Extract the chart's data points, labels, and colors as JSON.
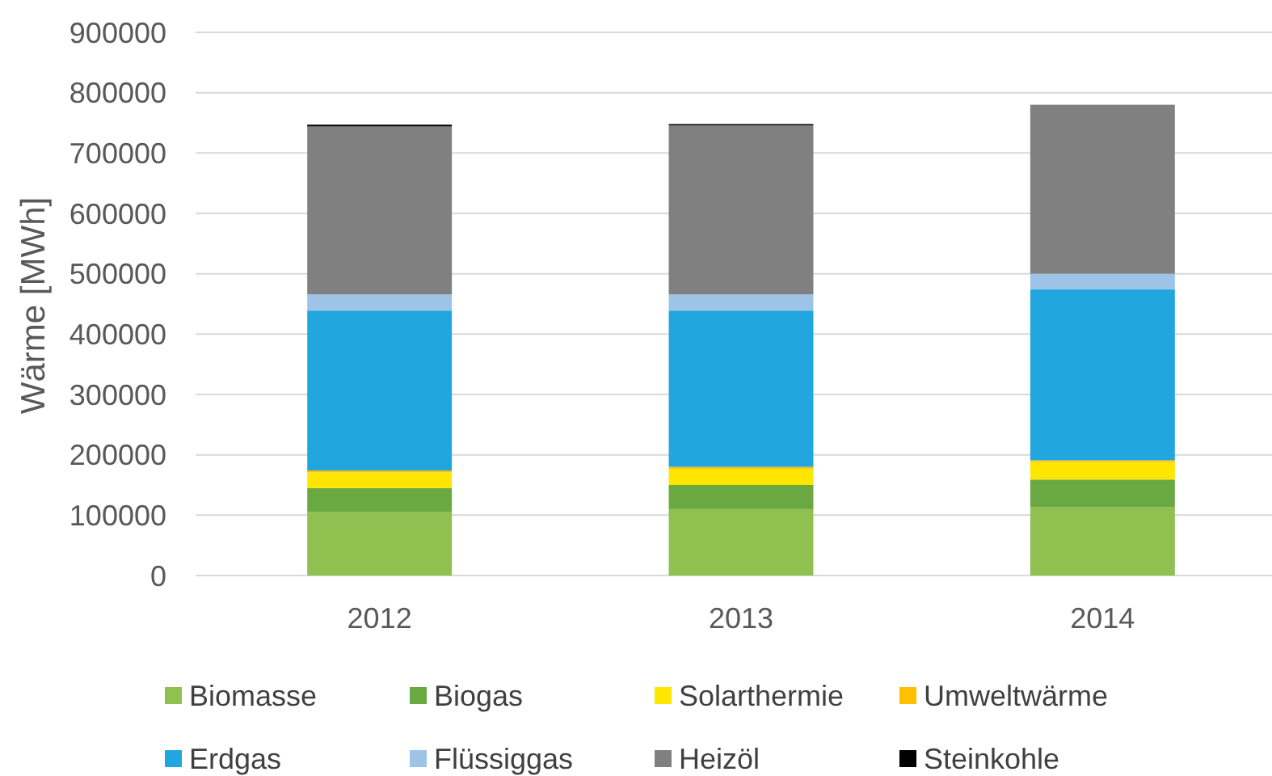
{
  "chart_data": {
    "type": "bar",
    "stacked": true,
    "ylabel": "Wärme [MWh]",
    "categories": [
      "2012",
      "2013",
      "2014"
    ],
    "ylim": [
      0,
      900000
    ],
    "yticks": [
      0,
      100000,
      200000,
      300000,
      400000,
      500000,
      600000,
      700000,
      800000,
      900000
    ],
    "grid": "y",
    "legend": "bottom",
    "series": [
      {
        "name": "Biomasse",
        "color": "#8fc050",
        "values": [
          105000,
          110000,
          113000
        ]
      },
      {
        "name": "Biogas",
        "color": "#6aa841",
        "values": [
          40000,
          40000,
          46000
        ]
      },
      {
        "name": "Solarthermie",
        "color": "#ffe600",
        "values": [
          26000,
          27000,
          29000
        ]
      },
      {
        "name": "Umweltwärme",
        "color": "#ffc000",
        "values": [
          3000,
          3000,
          3000
        ]
      },
      {
        "name": "Erdgas",
        "color": "#22a6e0",
        "values": [
          265000,
          259000,
          283000
        ]
      },
      {
        "name": "Flüssiggas",
        "color": "#9dc3e6",
        "values": [
          27000,
          27000,
          26000
        ]
      },
      {
        "name": "Heizöl",
        "color": "#808080",
        "values": [
          278000,
          280000,
          280000
        ]
      },
      {
        "name": "Steinkohle",
        "color": "#000000",
        "values": [
          3000,
          2000,
          0
        ]
      }
    ]
  }
}
